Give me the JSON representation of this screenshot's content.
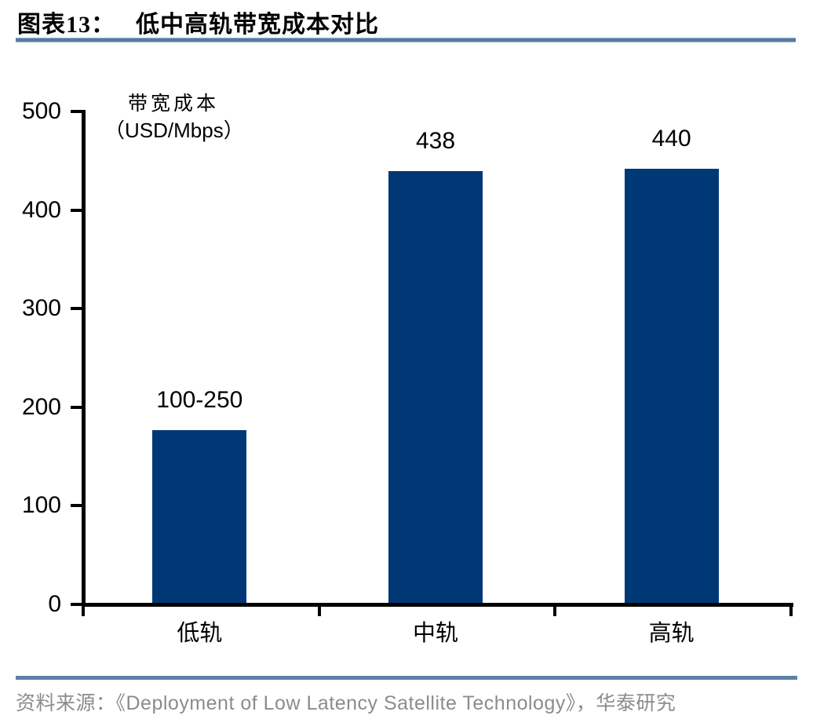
{
  "header": {
    "figure_label": "图表13：",
    "title": "低中高轨带宽成本对比"
  },
  "chart_data": {
    "type": "bar",
    "title": "低中高轨带宽成本对比",
    "categories": [
      "低轨",
      "中轨",
      "高轨"
    ],
    "values": [
      175,
      438,
      440
    ],
    "value_labels": [
      "100-250",
      "438",
      "440"
    ],
    "series_note": "低轨 bar plotted at the midpoint of the 100-250 range",
    "ylabel_line1": "带宽成本",
    "ylabel_line2": "（USD/Mbps）",
    "ylim": [
      0,
      500
    ],
    "yticks": [
      0,
      100,
      200,
      300,
      400,
      500
    ],
    "xlabel": "",
    "legend": null,
    "grid": false,
    "bar_color": "#003876"
  },
  "footer": {
    "source_text": "资料来源：《Deployment of Low Latency Satellite Technology》，华泰研究"
  },
  "colors": {
    "bar": "#003876",
    "rule_blue": "#5d81a9",
    "axis": "#000000",
    "source_gray": "#8c8c8c",
    "title_black": "#000000"
  }
}
